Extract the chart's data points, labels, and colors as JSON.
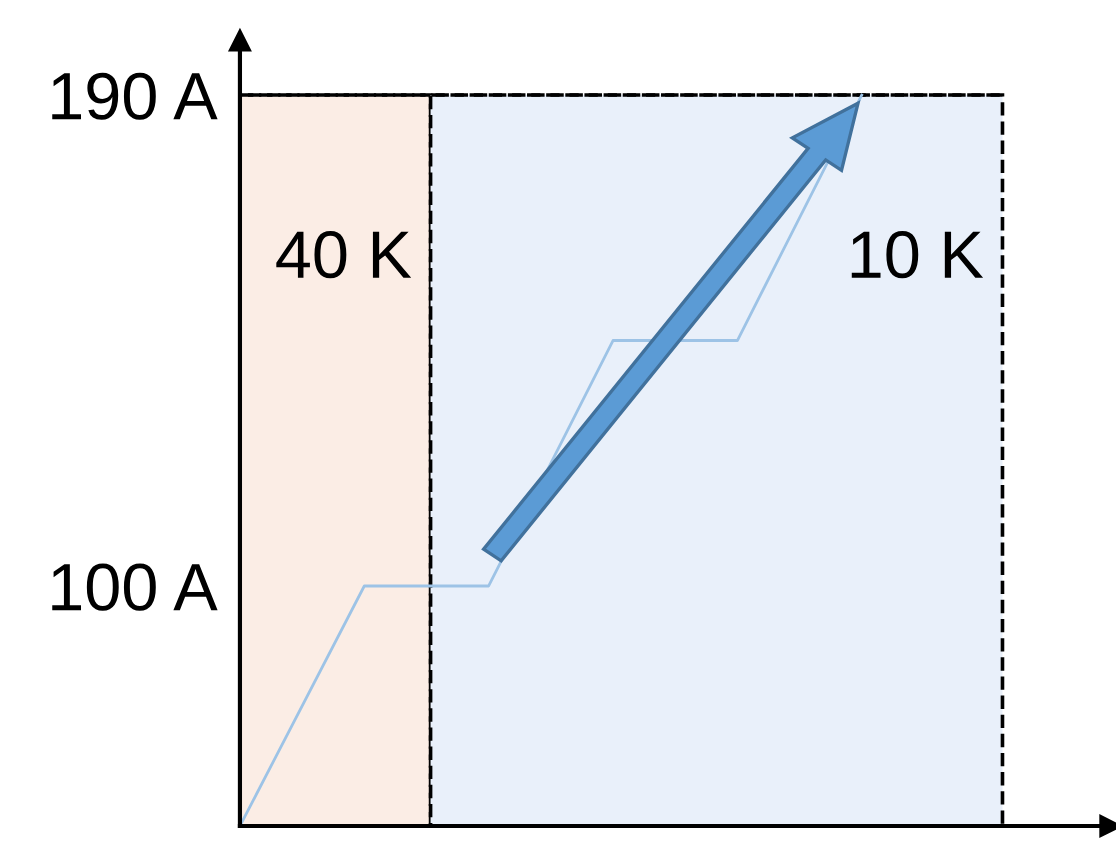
{
  "chart_data": {
    "type": "line",
    "categories": [
      null,
      null,
      null,
      null,
      null,
      null
    ],
    "series": [
      {
        "color": "#9dc3e6",
        "values": [
          56,
          100,
          100,
          145,
          145,
          190
        ]
      }
    ],
    "ylim": [
      56,
      200
    ],
    "yticks": [
      {
        "value": 100,
        "label": "100 A"
      },
      {
        "value": 190,
        "label": "190 A"
      }
    ],
    "tick_labels": "y",
    "grid": false,
    "annotations": [
      "40 K",
      "10 K"
    ],
    "ref_lines": [
      {
        "axis": "y",
        "value": 190,
        "line_style": "dashed",
        "color": "#000000"
      }
    ]
  }
}
